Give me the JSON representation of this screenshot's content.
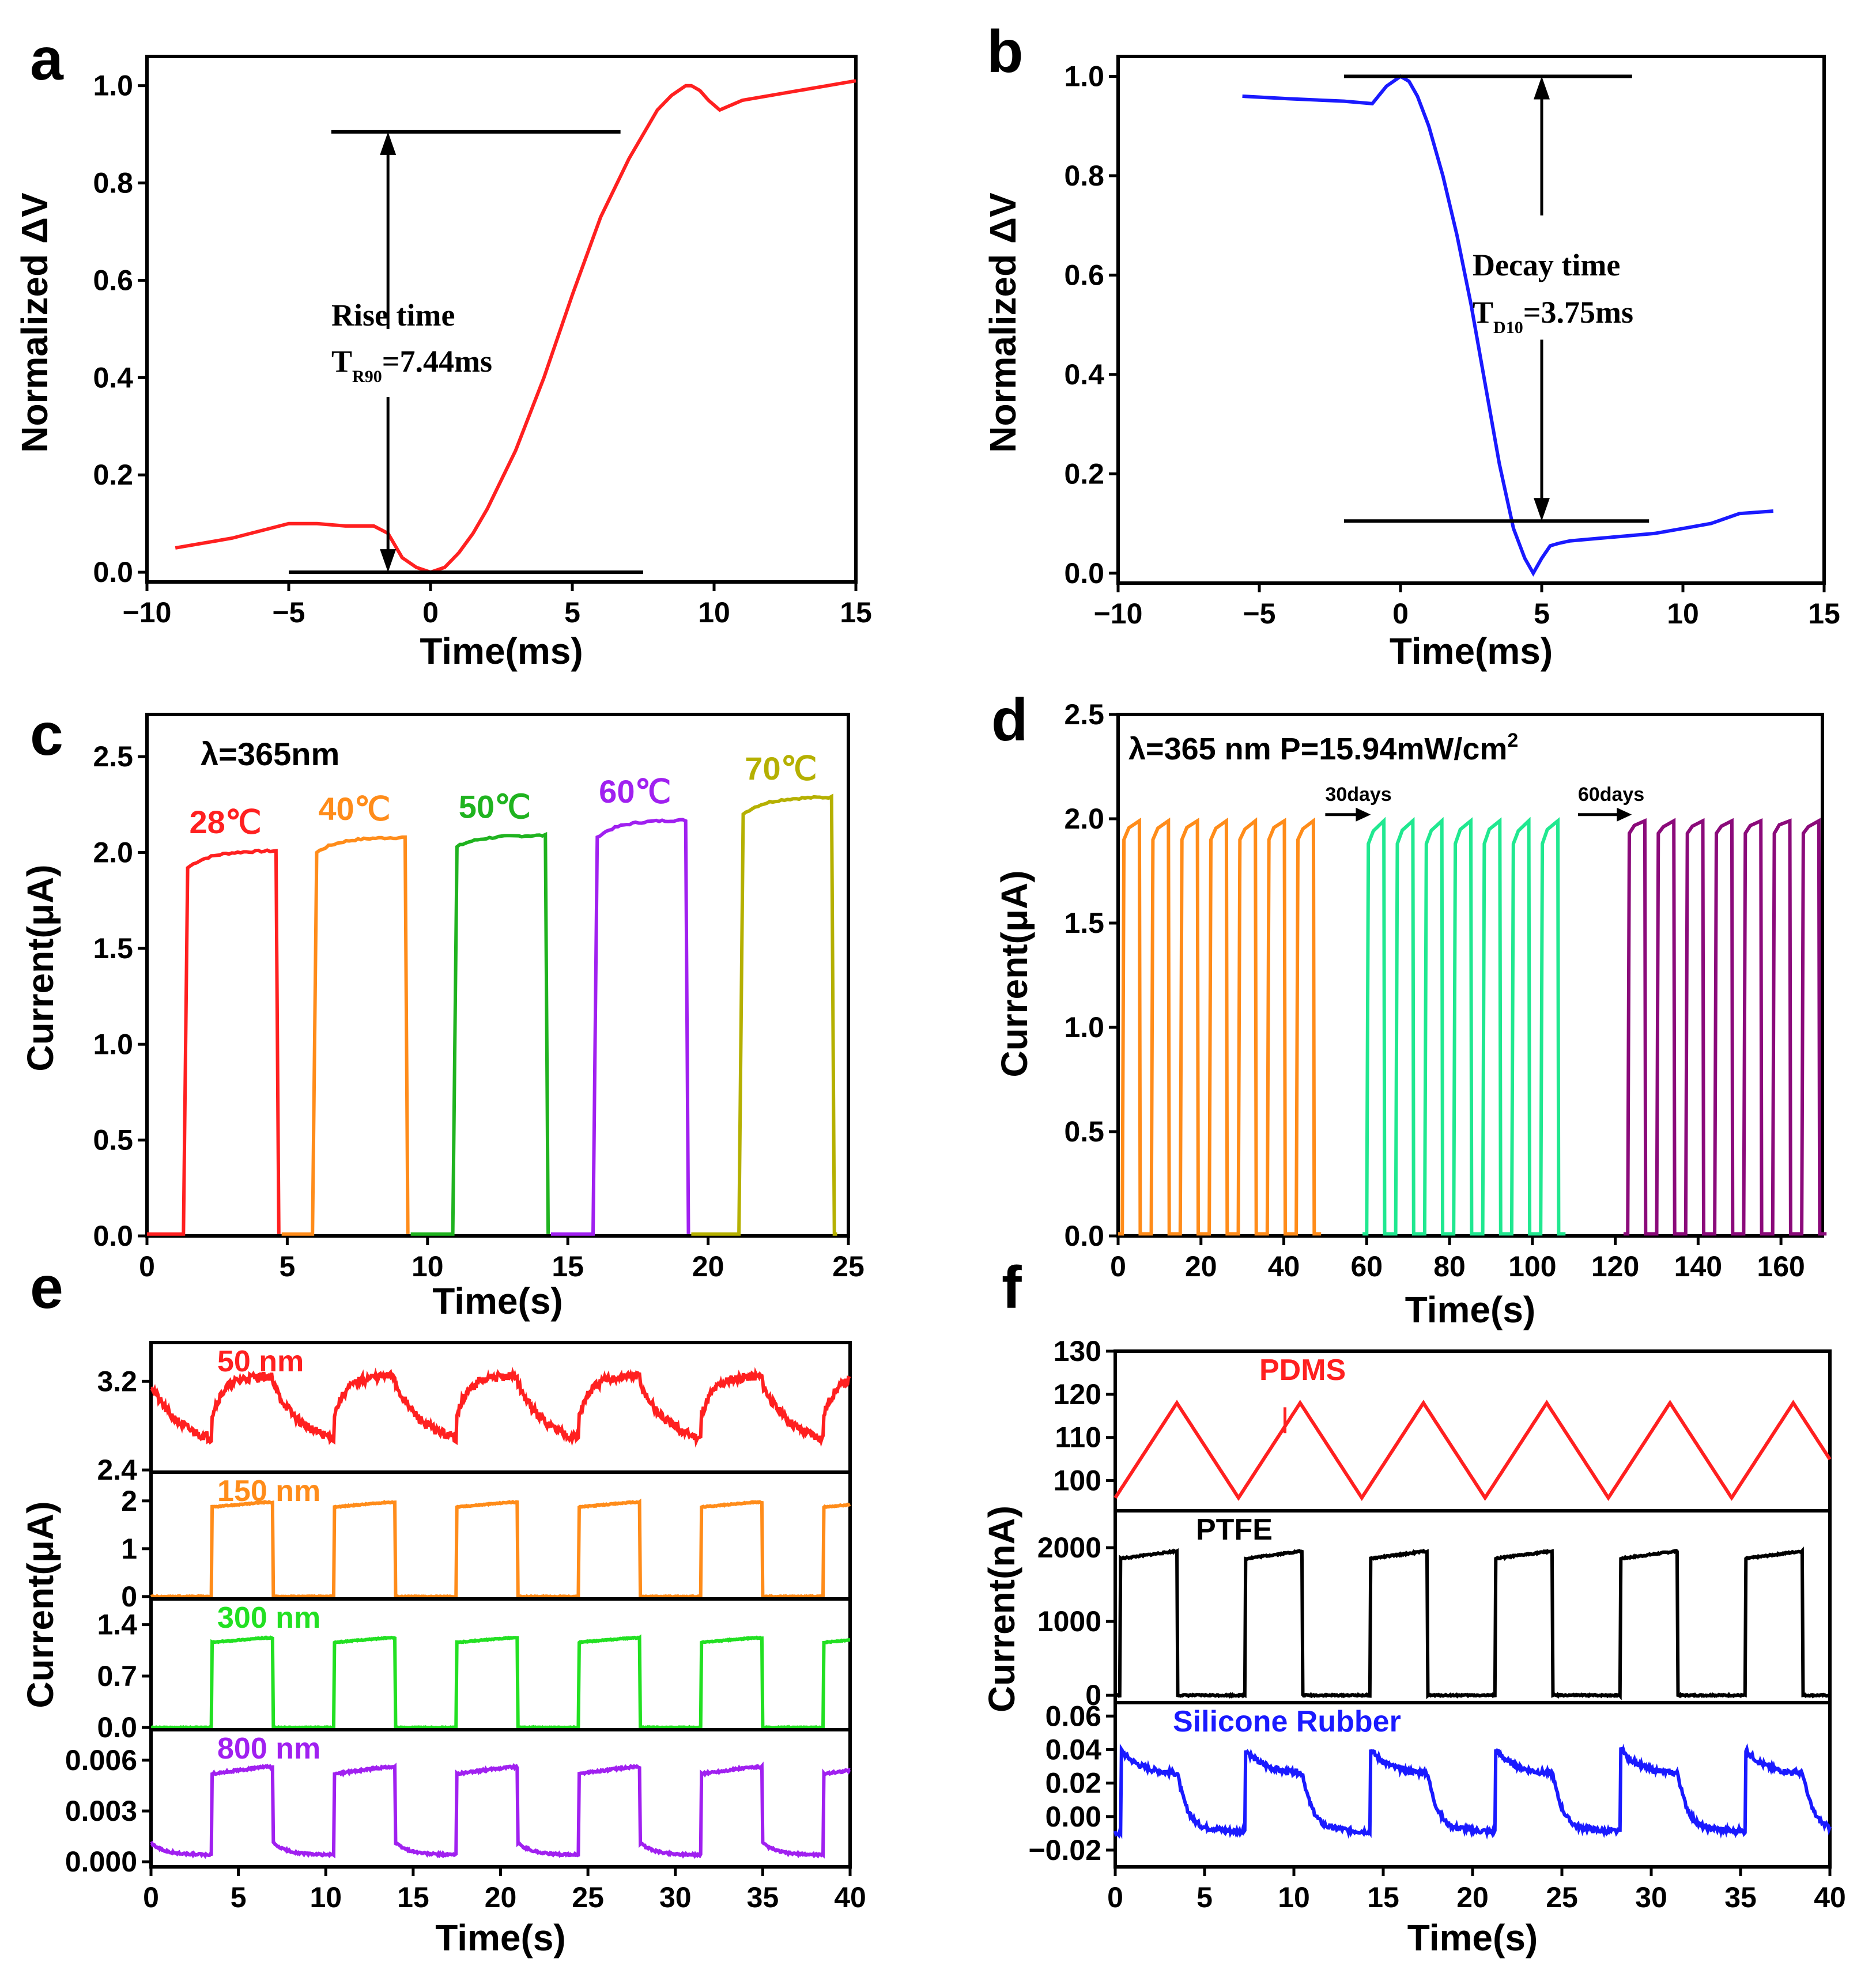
{
  "colors": {
    "red": "#ff2020",
    "blue": "#1a1aff",
    "orange": "#ff8c1a",
    "green": "#1fb31f",
    "purple": "#a020f0",
    "olive": "#b5b000",
    "mint": "#20e890",
    "darkpurple": "#8b0a7a",
    "lightgreen": "#22e022",
    "black": "#000000"
  },
  "chart_data": [
    {
      "panel": "a",
      "type": "line",
      "xlabel": "Time(ms)",
      "ylabel": "Normalized ΔV",
      "xlim": [
        -10,
        15
      ],
      "ylim": [
        -0.02,
        1.06
      ],
      "xticks": [
        "-10",
        "-5",
        "0",
        "5",
        "10",
        "15"
      ],
      "yticks": [
        "0.0",
        "0.2",
        "0.4",
        "0.6",
        "0.8",
        "1.0"
      ],
      "series": [
        {
          "name": "rise",
          "color": "red",
          "x": [
            -9,
            -7,
            -5,
            -4,
            -3,
            -2,
            -1.5,
            -1,
            -0.5,
            0,
            0.5,
            1,
            1.5,
            2,
            3,
            4,
            5,
            6,
            7,
            8,
            8.5,
            9,
            9.2,
            9.5,
            9.8,
            10.2,
            11,
            12,
            13,
            14,
            15
          ],
          "y": [
            0.05,
            0.07,
            0.1,
            0.1,
            0.095,
            0.095,
            0.08,
            0.03,
            0.01,
            0.0,
            0.01,
            0.04,
            0.08,
            0.13,
            0.25,
            0.4,
            0.57,
            0.73,
            0.85,
            0.95,
            0.98,
            1.0,
            1.0,
            0.99,
            0.97,
            0.95,
            0.97,
            0.98,
            0.99,
            1.0,
            1.01
          ]
        }
      ],
      "annotation": {
        "title": "Rise time",
        "t_main": "T",
        "t_sub": "R90",
        "t_value": "=7.44ms"
      }
    },
    {
      "panel": "b",
      "type": "line",
      "xlabel": "Time(ms)",
      "ylabel": "Normalized ΔV",
      "xlim": [
        -10,
        15
      ],
      "ylim": [
        -0.02,
        1.04
      ],
      "xticks": [
        "-10",
        "-5",
        "0",
        "5",
        "10",
        "15"
      ],
      "yticks": [
        "0.0",
        "0.2",
        "0.4",
        "0.6",
        "0.8",
        "1.0"
      ],
      "series": [
        {
          "name": "decay",
          "color": "blue",
          "x": [
            -5.6,
            -4,
            -2,
            -1,
            -0.5,
            0,
            0.3,
            0.6,
            1,
            1.5,
            2,
            2.5,
            3,
            3.5,
            4,
            4.4,
            4.7,
            5,
            5.3,
            5.6,
            6,
            7,
            8,
            9,
            10,
            11,
            12,
            13.2
          ],
          "y": [
            0.96,
            0.955,
            0.95,
            0.945,
            0.98,
            1.0,
            0.99,
            0.96,
            0.9,
            0.8,
            0.68,
            0.54,
            0.38,
            0.22,
            0.09,
            0.03,
            0.0,
            0.03,
            0.055,
            0.06,
            0.065,
            0.07,
            0.075,
            0.08,
            0.09,
            0.1,
            0.12,
            0.125
          ]
        }
      ],
      "annotation": {
        "title": "Decay time",
        "t_main": "T",
        "t_sub": "D10",
        "t_value": "=3.75ms"
      }
    },
    {
      "panel": "c",
      "type": "line",
      "xlabel": "Time(s)",
      "ylabel": "Current(μA)",
      "xlim": [
        0,
        25
      ],
      "ylim": [
        0,
        2.72
      ],
      "xticks": [
        "0",
        "5",
        "10",
        "15",
        "20",
        "25"
      ],
      "yticks": [
        "0.0",
        "0.5",
        "1.0",
        "1.5",
        "2.0",
        "2.5"
      ],
      "legend_text": "λ=365nm",
      "pulses": [
        {
          "label": "28℃",
          "color": "red",
          "on": 1.3,
          "off": 4.7,
          "low": 1.92,
          "high": 2.01
        },
        {
          "label": "40℃",
          "color": "orange",
          "on": 5.9,
          "off": 9.3,
          "low": 2.0,
          "high": 2.08
        },
        {
          "label": "50℃",
          "color": "green",
          "on": 10.9,
          "off": 14.3,
          "low": 2.03,
          "high": 2.09
        },
        {
          "label": "60℃",
          "color": "purple",
          "on": 15.9,
          "off": 19.3,
          "low": 2.08,
          "high": 2.17
        },
        {
          "label": "70℃",
          "color": "olive",
          "on": 21.1,
          "off": 24.5,
          "low": 2.2,
          "high": 2.29
        }
      ]
    },
    {
      "panel": "d",
      "type": "line",
      "xlabel": "Time(s)",
      "ylabel": "Current(μA)",
      "xlim": [
        0,
        170
      ],
      "ylim": [
        0,
        2.5
      ],
      "xticks": [
        "0",
        "20",
        "40",
        "60",
        "80",
        "100",
        "120",
        "140",
        "160"
      ],
      "yticks": [
        "0.0",
        "0.5",
        "1.0",
        "1.5",
        "2.0",
        "2.5"
      ],
      "legend_text": "λ=365 nm P=15.94mW/cm",
      "legend_sup": "2",
      "arrows": [
        {
          "label": "30days",
          "from": 50,
          "to": 61
        },
        {
          "label": "60days",
          "from": 111,
          "to": 124
        }
      ],
      "groups": [
        {
          "color": "orange",
          "start": 1,
          "period": 7,
          "count": 7,
          "low": 1.9,
          "high": 1.99
        },
        {
          "color": "mint",
          "start": 60,
          "period": 7,
          "count": 7,
          "low": 1.88,
          "high": 1.99
        },
        {
          "color": "darkpurple",
          "start": 123,
          "period": 7,
          "count": 7,
          "low": 1.93,
          "high": 1.99
        }
      ]
    },
    {
      "panel": "e",
      "type": "line",
      "xlabel": "Time(s)",
      "ylabel": "Current(μA)",
      "xlim": [
        0,
        40
      ],
      "xticks": [
        "0",
        "5",
        "10",
        "15",
        "20",
        "25",
        "30",
        "35",
        "40"
      ],
      "subplots": [
        {
          "label": "50 nm",
          "color": "red",
          "ylim": [
            2.38,
            3.55
          ],
          "yticks": [
            "2.4",
            "3.2"
          ],
          "ytick_values": [
            2.4,
            3.2
          ],
          "low": 2.62,
          "high": 3.25,
          "shape": "sawtooth"
        },
        {
          "label": "150 nm",
          "color": "orange",
          "ylim": [
            -0.05,
            2.6
          ],
          "yticks": [
            "0",
            "1",
            "2"
          ],
          "ytick_values": [
            0,
            1,
            2
          ],
          "low": 0.0,
          "high": 1.97,
          "shape": "square"
        },
        {
          "label": "300 nm",
          "color": "lightgreen",
          "ylim": [
            -0.03,
            1.75
          ],
          "yticks": [
            "0.0",
            "0.7",
            "1.4"
          ],
          "ytick_values": [
            0.0,
            0.7,
            1.4
          ],
          "low": 0.0,
          "high": 1.22,
          "shape": "square"
        },
        {
          "label": "800 nm",
          "color": "purple",
          "ylim": [
            -0.0003,
            0.0078
          ],
          "yticks": [
            "0.000",
            "0.003",
            "0.006"
          ],
          "ytick_values": [
            0.0,
            0.003,
            0.006
          ],
          "low": 0.0004,
          "high": 0.0052,
          "shape": "decay"
        }
      ],
      "on_times": [
        3.5,
        10.5,
        17.5,
        24.5,
        31.5,
        38.5
      ],
      "off_times": [
        7.0,
        14.0,
        21.0,
        28.0,
        35.0
      ]
    },
    {
      "panel": "f",
      "type": "line",
      "xlabel": "Time(s)",
      "ylabel": "Current(nA)",
      "xlim": [
        0,
        40
      ],
      "xticks": [
        "0",
        "5",
        "10",
        "15",
        "20",
        "25",
        "30",
        "35",
        "40"
      ],
      "subplots": [
        {
          "label": "PDMS",
          "color": "red",
          "ylim": [
            93,
            130
          ],
          "yticks": [
            "100",
            "110",
            "120",
            "130"
          ],
          "ytick_values": [
            100,
            110,
            120,
            130
          ],
          "low": 96,
          "high": 118,
          "shape": "triangle"
        },
        {
          "label": "PTFE",
          "color": "black",
          "ylim": [
            -100,
            2500
          ],
          "yticks": [
            "0",
            "1000",
            "2000"
          ],
          "ytick_values": [
            0,
            1000,
            2000
          ],
          "low": 0,
          "high": 1950,
          "shape": "square"
        },
        {
          "label": "Silicone Rubber",
          "color": "blue",
          "ylim": [
            -0.03,
            0.068
          ],
          "yticks": [
            "-0.02",
            "0.00",
            "0.02",
            "0.04",
            "0.06"
          ],
          "ytick_values": [
            -0.02,
            0.0,
            0.02,
            0.04,
            0.06
          ],
          "low": -0.015,
          "high": 0.04,
          "shape": "bumps"
        }
      ],
      "on_times": [
        0.3,
        7.3,
        14.3,
        21.3,
        28.3,
        35.3
      ],
      "off_times": [
        3.5,
        10.5,
        17.5,
        24.5,
        31.5,
        38.5
      ]
    }
  ],
  "panel_letters": [
    "a",
    "b",
    "c",
    "d",
    "e",
    "f"
  ]
}
